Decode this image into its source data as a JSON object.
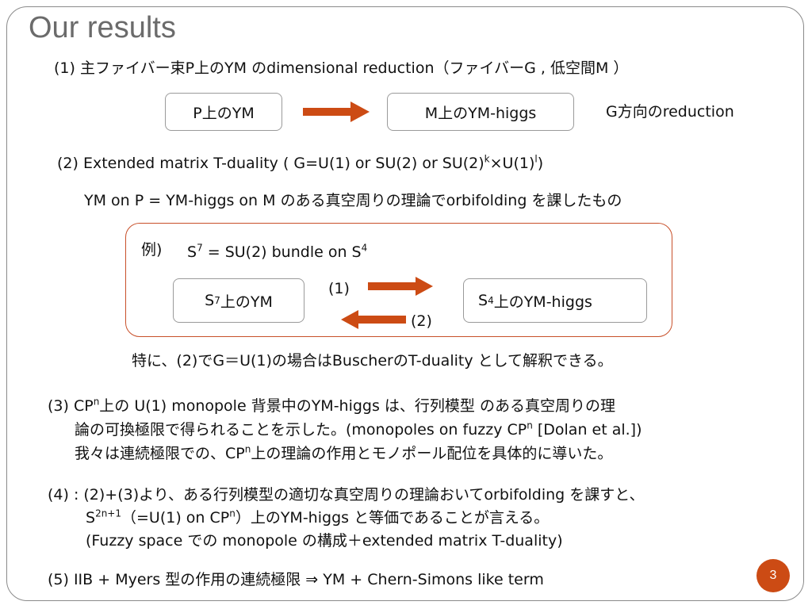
{
  "slide": {
    "title": "Our results",
    "page_number": "3",
    "accent_color": "#cc4b14"
  },
  "item1": {
    "heading": "(1) 主ファイバー束P上のYM のdimensional reduction（ファイバーG , 低空間M ）",
    "box_left": "P上のYM",
    "box_right": "M上のYM-higgs",
    "note": "G方向のreduction"
  },
  "item2": {
    "heading_pre": "(2)  Extended matrix T-duality  ( G=U(1) or SU(2) or SU(2)",
    "heading_sup_k": "k",
    "heading_mid": "×U(1)",
    "heading_sup_l": "l",
    "heading_post": ")",
    "statement": "YM on P = YM-higgs on M のある真空周りの理論でorbifolding を課したもの",
    "example": {
      "label": "例)",
      "s7_pre": "S",
      "s7_sup": "7",
      "s7_mid": " = SU(2) bundle on S",
      "s7_sup2": "4",
      "box_left_pre": "S",
      "box_left_sup": "7",
      "box_left_post": "上のYM",
      "box_right_pre": "S",
      "box_right_sup": "4",
      "box_right_post": "上のYM-higgs",
      "arrow_forward_label": "(1)",
      "arrow_back_label": "(2)"
    },
    "remark": "特に、(2)でG＝U(1)の場合はBuscherのT-duality として解釈できる。"
  },
  "item3": {
    "line1_pre": "(3) CP",
    "line1_sup": "n",
    "line1_post": "上の U(1) monopole 背景中のYM-higgs は、行列模型 のある真空周りの理",
    "line2_pre": "論の可換極限で得られることを示した。(monopoles on fuzzy CP",
    "line2_sup": "n",
    "line2_post": " [Dolan et al.])",
    "line3_pre": "我々は連続極限での、CP",
    "line3_sup": "n",
    "line3_post": "上の理論の作用とモノポール配位を具体的に導いた。"
  },
  "item4": {
    "line1": "(4) : (2)+(3)より、ある行列模型の適切な真空周りの理論おいてorbifolding を課すと、",
    "line2_pre": "S",
    "line2_sup": "2n+1",
    "line2_mid": "（=U(1) on CP",
    "line2_sup2": "n",
    "line2_post": "）上のYM-higgs と等価であることが言える。",
    "line3": "(Fuzzy space での monopole の構成＋extended matrix T-duality)"
  },
  "item5": {
    "text": "(5) IIB + Myers 型の作用の連続極限  ⇒  YM + Chern-Simons  like  term"
  }
}
